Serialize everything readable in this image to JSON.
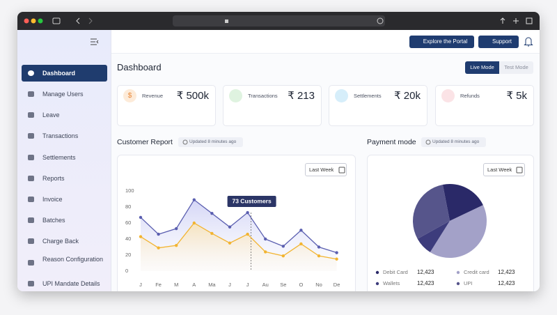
{
  "header": {
    "explore_button": "Explore the Portal",
    "support_button": "Support"
  },
  "sidebar": {
    "items": [
      "Dashboard",
      "Manage Users",
      "Leave",
      "Transactions",
      "Settlements",
      "Reports",
      "Invoice",
      "Batches",
      "Charge Back",
      "Reason Configuration",
      "UPI Mandate Details"
    ]
  },
  "page": {
    "title": "Dashboard",
    "live_mode": "Live Mode",
    "test_mode": "Test Mode"
  },
  "cards": [
    {
      "icon": "$",
      "label": "Revenue",
      "value": "₹ 500k"
    },
    {
      "label": "Transactions",
      "value": "₹ 213"
    },
    {
      "label": "Settlements",
      "value": "₹ 20k"
    },
    {
      "label": "Refunds",
      "value": "₹ 5k"
    }
  ],
  "chart_data": [
    {
      "type": "line",
      "title": "Customer Report",
      "subtitle": "Updated 8 minutes ago",
      "filter": "Last Week",
      "categories": [
        "J",
        "Fe",
        "M",
        "A",
        "Ma",
        "J",
        "J",
        "Au",
        "Se",
        "O",
        "No",
        "De"
      ],
      "series": [
        {
          "color": "#5b5fb0",
          "values": [
            67,
            46,
            53,
            89,
            72,
            55,
            73,
            40,
            31,
            51,
            30,
            23
          ],
          "value_labels": [
            null,
            null,
            null,
            null,
            null,
            null,
            "73 Customers",
            null,
            null,
            null,
            null,
            null
          ]
        },
        {
          "color": "#f2b431",
          "values": [
            43,
            29,
            32,
            60,
            47,
            35,
            46,
            24,
            19,
            34,
            19,
            15
          ]
        }
      ],
      "ylim": [
        0,
        100
      ],
      "yticks": [
        0,
        20,
        40,
        60,
        80,
        100
      ],
      "grid": false
    },
    {
      "type": "pie",
      "title": "Payment mode",
      "subtitle": "Updated 8 minutes ago",
      "filter": "Last Week",
      "categories": [
        "Debit Card",
        "Credit card",
        "Wallets",
        "UPI"
      ],
      "values": [
        21,
        41,
        8,
        30
      ],
      "colors": [
        "#2a2968",
        "#a3a1c8",
        "#3d3c7c",
        "#56558b"
      ],
      "amounts": [
        "12,423",
        "12,423",
        "12,423",
        "12,423"
      ]
    }
  ]
}
